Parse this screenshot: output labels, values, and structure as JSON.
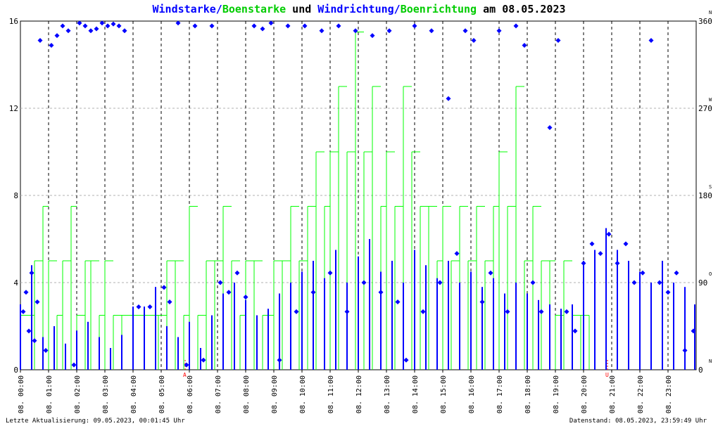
{
  "title": {
    "part1": "Windstarke",
    "sep1": "/",
    "part2": "Boenstarke",
    "mid": " und ",
    "part3": "Windrichtung",
    "sep2": "/",
    "part4": "Boenrichtung",
    "suffix": " am 08.05.2023"
  },
  "footer": {
    "left": "Letzte Aktualisierung: 09.05.2023, 00:01:45 Uhr",
    "right": "Datenstand: 08.05.2023, 23:59:49 Uhr"
  },
  "colors": {
    "wind": "#0000ff",
    "gust": "#00ff00",
    "direction": "#0000ff",
    "gust_direction": "#00ff00",
    "grid": "#000000",
    "marker": "#ff0000"
  },
  "chart_data": {
    "type": "scatter",
    "title": "Windstarke/Boenstarke und Windrichtung/Boenrichtung am 08.05.2023",
    "xlim": [
      0,
      24
    ],
    "ylim_left": [
      0,
      16
    ],
    "ylim_right": [
      0,
      360
    ],
    "left_ticks": [
      "0",
      "4",
      "8",
      "12",
      "16"
    ],
    "right_ticks": [
      "0",
      "90",
      "180",
      "270",
      "360"
    ],
    "right_tick_letters": [
      "N",
      "O",
      "S",
      "W",
      "N"
    ],
    "x_ticks": [
      "08. 00:00",
      "08. 01:00",
      "08. 02:00",
      "08. 03:00",
      "08. 04:00",
      "08. 05:00",
      "08. 06:00",
      "08. 07:00",
      "08. 08:00",
      "08. 09:00",
      "08. 10:00",
      "08. 11:00",
      "08. 12:00",
      "08. 13:00",
      "08. 14:00",
      "08. 15:00",
      "08. 16:00",
      "08. 17:00",
      "08. 18:00",
      "08. 19:00",
      "08. 20:00",
      "08. 21:00",
      "08. 22:00",
      "08. 23:00"
    ],
    "markers": [
      {
        "label": "A",
        "x": 5.85
      },
      {
        "label": "U",
        "x": 20.85
      }
    ],
    "series": [
      {
        "kind": "gust_speed",
        "x": [
          0.0,
          0.5,
          0.8,
          1.0,
          1.3,
          1.5,
          1.8,
          2.0,
          2.3,
          2.5,
          2.8,
          3.0,
          3.3,
          3.6,
          4.9,
          5.2,
          5.5,
          5.8,
          6.0,
          6.3,
          6.6,
          6.9,
          7.2,
          7.5,
          7.8,
          8.0,
          8.3,
          8.6,
          9.0,
          9.3,
          9.6,
          9.9,
          10.2,
          10.5,
          10.8,
          11.0,
          11.3,
          11.6,
          11.9,
          12.2,
          12.5,
          12.8,
          13.0,
          13.3,
          13.6,
          13.9,
          14.2,
          14.5,
          14.8,
          15.0,
          15.3,
          15.6,
          15.9,
          16.2,
          16.5,
          16.8,
          17.0,
          17.3,
          17.6,
          17.9,
          18.2,
          18.5,
          18.8,
          19.0,
          19.3,
          19.6,
          19.9,
          20.2
        ],
        "y": [
          2.5,
          5.0,
          7.5,
          5.0,
          2.5,
          5.0,
          7.5,
          2.5,
          5.0,
          5.0,
          2.5,
          5.0,
          2.5,
          2.5,
          2.5,
          5.0,
          5.0,
          2.5,
          7.5,
          2.5,
          5.0,
          5.0,
          7.5,
          5.0,
          2.5,
          5.0,
          5.0,
          2.5,
          5.0,
          5.0,
          7.5,
          5.0,
          7.5,
          10.0,
          7.5,
          10.0,
          13.0,
          10.0,
          15.5,
          10.0,
          13.0,
          7.5,
          10.0,
          7.5,
          13.0,
          10.0,
          7.5,
          7.5,
          5.0,
          7.5,
          5.0,
          7.5,
          5.0,
          7.5,
          5.0,
          7.5,
          10.0,
          7.5,
          13.0,
          5.0,
          7.5,
          5.0,
          5.0,
          2.5,
          5.0,
          2.5,
          2.5,
          2.5
        ]
      },
      {
        "kind": "wind_speed",
        "x": [
          0.0,
          0.4,
          0.8,
          1.2,
          1.6,
          2.0,
          2.4,
          2.8,
          3.2,
          3.6,
          4.0,
          4.4,
          4.8,
          5.2,
          5.6,
          6.0,
          6.4,
          6.8,
          7.2,
          7.6,
          8.0,
          8.4,
          8.8,
          9.2,
          9.6,
          10.0,
          10.4,
          10.8,
          11.2,
          11.6,
          12.0,
          12.4,
          12.8,
          13.2,
          13.6,
          14.0,
          14.4,
          14.8,
          15.2,
          15.6,
          16.0,
          16.4,
          16.8,
          17.2,
          17.6,
          18.0,
          18.4,
          18.8,
          19.2,
          19.6,
          20.0,
          20.4,
          20.8,
          21.2,
          21.6,
          22.0,
          22.4,
          22.8,
          23.2,
          23.6,
          23.95
        ],
        "y": [
          3.0,
          4.8,
          1.5,
          2.0,
          1.2,
          1.8,
          2.2,
          1.5,
          1.0,
          1.6,
          2.9,
          2.9,
          3.8,
          2.0,
          1.5,
          2.2,
          1.0,
          2.5,
          3.5,
          4.0,
          3.2,
          2.5,
          2.8,
          3.5,
          4.0,
          4.5,
          5.0,
          4.2,
          5.5,
          4.0,
          5.2,
          6.0,
          4.5,
          5.0,
          4.0,
          5.5,
          4.8,
          4.2,
          5.0,
          4.0,
          4.5,
          3.8,
          4.2,
          3.5,
          4.0,
          3.5,
          3.2,
          3.0,
          2.8,
          3.0,
          5.0,
          5.5,
          6.5,
          5.5,
          5.0,
          4.5,
          4.0,
          5.0,
          4.0,
          3.8,
          3.0
        ]
      },
      {
        "kind": "wind_direction_deg",
        "x": [
          0.1,
          0.2,
          0.3,
          0.4,
          0.5,
          0.6,
          0.7,
          0.9,
          1.1,
          1.3,
          1.5,
          1.7,
          1.9,
          2.1,
          2.3,
          2.5,
          2.7,
          2.9,
          3.1,
          3.3,
          3.5,
          3.7,
          4.2,
          4.6,
          5.1,
          5.3,
          5.6,
          5.9,
          6.2,
          6.5,
          6.8,
          7.1,
          7.4,
          7.7,
          8.0,
          8.3,
          8.6,
          8.9,
          9.2,
          9.5,
          9.8,
          10.1,
          10.4,
          10.7,
          11.0,
          11.3,
          11.6,
          11.9,
          12.2,
          12.5,
          12.8,
          13.1,
          13.4,
          13.7,
          14.0,
          14.3,
          14.6,
          14.9,
          15.2,
          15.5,
          15.8,
          16.1,
          16.4,
          16.7,
          17.0,
          17.3,
          17.6,
          17.9,
          18.2,
          18.5,
          18.8,
          19.1,
          19.4,
          19.7,
          20.0,
          20.3,
          20.6,
          20.9,
          21.2,
          21.5,
          21.8,
          22.1,
          22.4,
          22.7,
          23.0,
          23.3,
          23.6,
          23.9
        ],
        "y": [
          60,
          80,
          40,
          100,
          30,
          70,
          340,
          20,
          335,
          345,
          355,
          350,
          5,
          358,
          355,
          350,
          352,
          358,
          355,
          357,
          355,
          350,
          65,
          65,
          85,
          70,
          358,
          5,
          355,
          10,
          355,
          90,
          80,
          100,
          75,
          355,
          352,
          358,
          10,
          355,
          60,
          355,
          80,
          350,
          100,
          355,
          60,
          350,
          90,
          345,
          80,
          350,
          70,
          10,
          355,
          60,
          350,
          90,
          280,
          120,
          350,
          340,
          70,
          100,
          350,
          60,
          355,
          335,
          90,
          60,
          250,
          340,
          60,
          40,
          110,
          130,
          120,
          140,
          110,
          130,
          90,
          100,
          340,
          90,
          80,
          100,
          20,
          40
        ]
      }
    ]
  }
}
